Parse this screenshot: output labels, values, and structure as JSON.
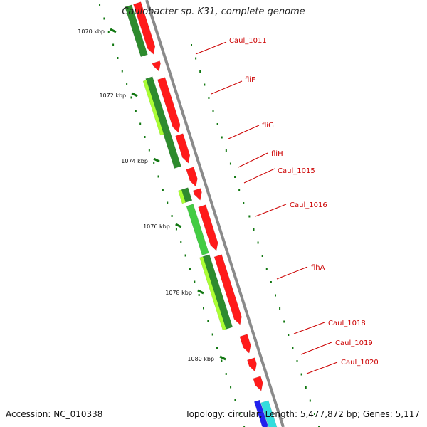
{
  "title": "Caulobacter sp. K31, complete genome",
  "footer": {
    "accession_label": "Accession:",
    "accession": "NC_010338",
    "topology_label": "Topology:",
    "topology": "circular",
    "length_label": "Length:",
    "length": "5,477,872 bp",
    "genes_label": "Genes:",
    "genes": "5,117"
  },
  "scale_labels": [
    "1070 kbp",
    "1072 kbp",
    "1074 kbp",
    "1076 kbp",
    "1078 kbp",
    "1080 kbp"
  ],
  "gene_labels": [
    "Caul_1011",
    "fliF",
    "fliG",
    "fliH",
    "Caul_1015",
    "Caul_1016",
    "flhA",
    "Caul_1018",
    "Caul_1019",
    "Caul_1020"
  ],
  "colors": {
    "backbone": "#8a8a8a",
    "cds_red": "#ff1a1a",
    "label_red": "#cc0000",
    "dark_green": "#2e8b2e",
    "mid_green": "#44cc44",
    "light_green": "#aaff33",
    "cyan": "#33dddd",
    "blue": "#2222ee",
    "tick_green": "#117711"
  }
}
